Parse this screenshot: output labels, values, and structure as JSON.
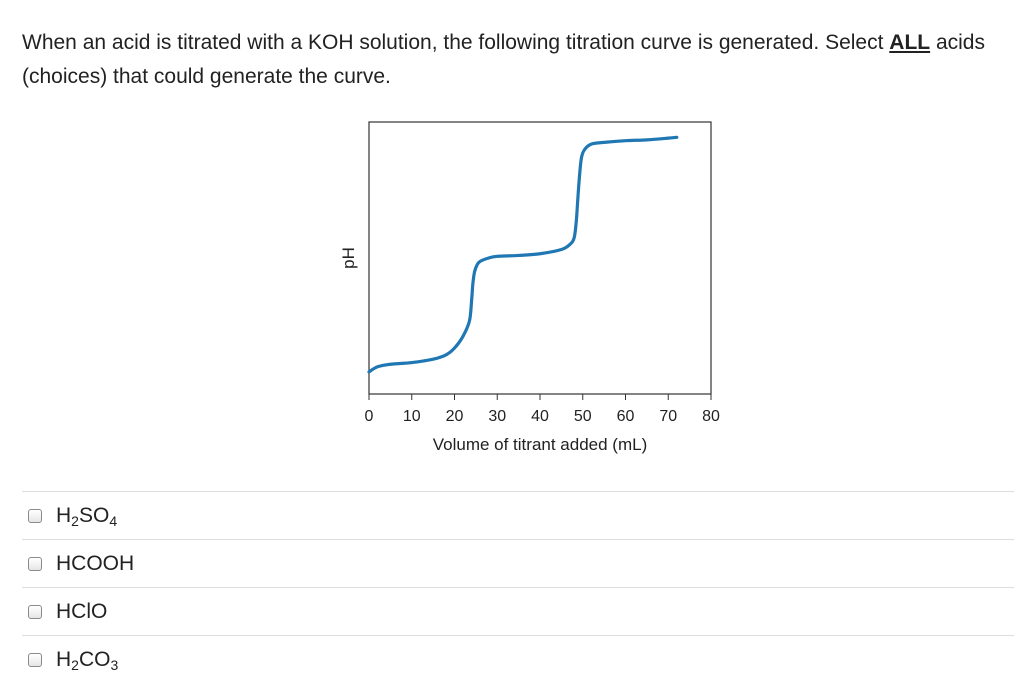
{
  "question": {
    "text_before": "When an acid is titrated with a KOH solution, the following titration curve is generated. Select ",
    "emphasis": "ALL",
    "text_after": " acids (choices) that could generate the curve."
  },
  "chart_data": {
    "type": "line",
    "xlabel": "Volume of titrant added (mL)",
    "ylabel": "pH",
    "xlim": [
      0,
      80
    ],
    "x_ticks": [
      "0",
      "10",
      "20",
      "30",
      "40",
      "50",
      "60",
      "70",
      "80"
    ],
    "y_ticks": [],
    "grid": false,
    "series": [
      {
        "color": "#1f77b4",
        "x": [
          0,
          2,
          5,
          10,
          15,
          18,
          20,
          22,
          23.5,
          24,
          24.3,
          24.7,
          25.3,
          26,
          28,
          30,
          35,
          40,
          45,
          47,
          48,
          48.5,
          48.8,
          49.2,
          49.7,
          50.5,
          52,
          55,
          60,
          65,
          70,
          72
        ],
        "y": [
          0.13,
          0.16,
          0.175,
          0.185,
          0.205,
          0.23,
          0.27,
          0.34,
          0.43,
          0.55,
          0.65,
          0.72,
          0.76,
          0.78,
          0.8,
          0.81,
          0.815,
          0.825,
          0.85,
          0.88,
          0.92,
          1.02,
          1.13,
          1.27,
          1.39,
          1.44,
          1.47,
          1.48,
          1.49,
          1.495,
          1.505,
          1.51
        ]
      }
    ]
  },
  "choices": [
    {
      "base": "H",
      "sub1": "2",
      "mid": "SO",
      "sub2": "4"
    },
    {
      "base": "HCOOH",
      "sub1": "",
      "mid": "",
      "sub2": ""
    },
    {
      "base": "HClO",
      "sub1": "",
      "mid": "",
      "sub2": ""
    },
    {
      "base": "H",
      "sub1": "2",
      "mid": "CO",
      "sub2": "3"
    }
  ]
}
